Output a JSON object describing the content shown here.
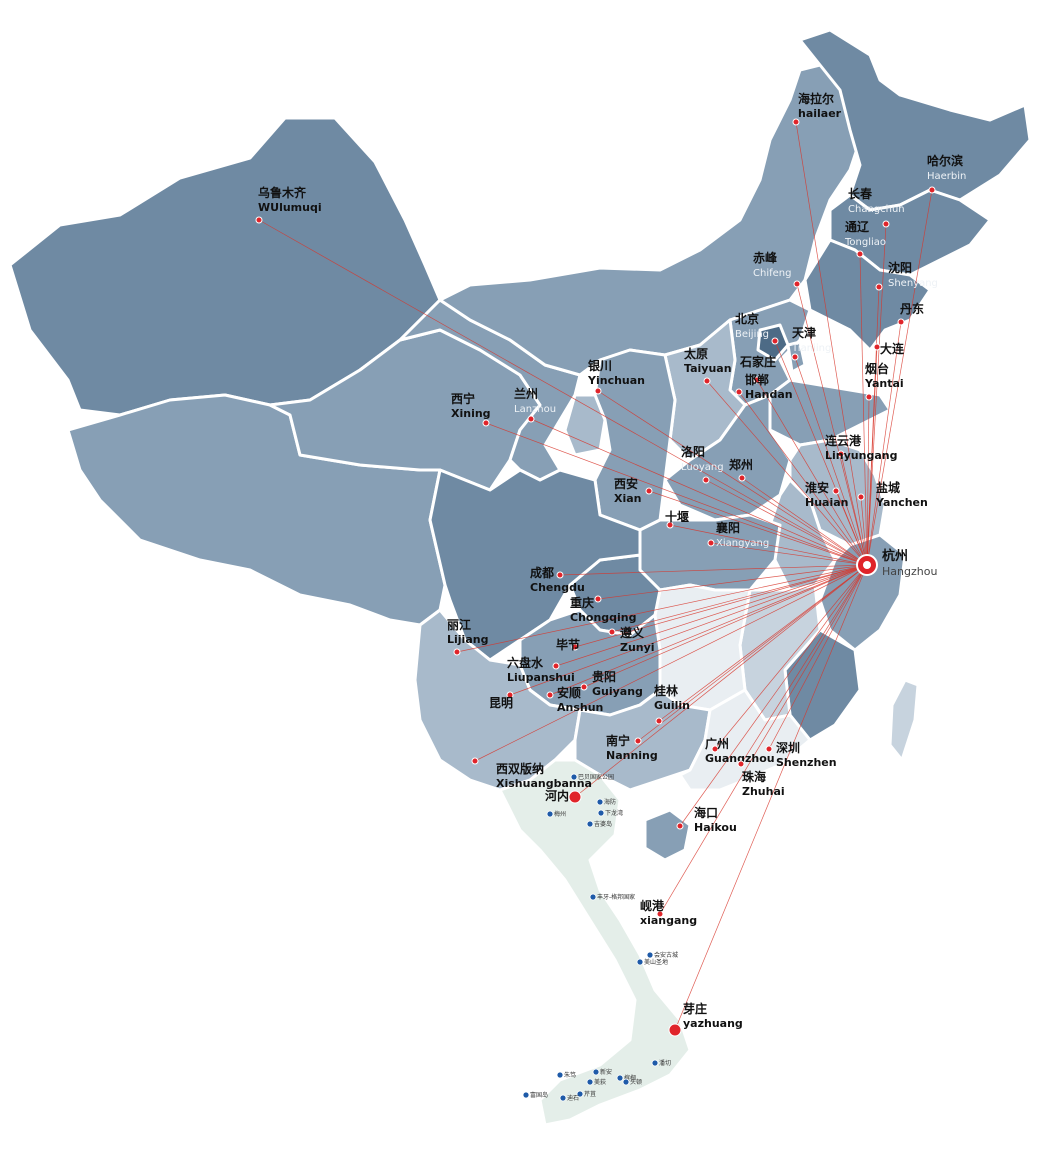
{
  "colors": {
    "province_dark": "#6f8aa3",
    "province_mid": "#879fb5",
    "province_light": "#a8bacb",
    "province_pale": "#c7d3de",
    "province_white": "#e9eef2",
    "vietnam": "#e4eee9",
    "route": "#d8352a",
    "dot": "#e0242a"
  },
  "hub": {
    "zh": "杭州",
    "en": "Hangzhou"
  },
  "cities": [
    {
      "id": "hailaer",
      "zh": "海拉尔",
      "en": "hailaer"
    },
    {
      "id": "haerbin",
      "zh": "哈尔滨",
      "en": "Haerbin"
    },
    {
      "id": "changchun",
      "zh": "长春",
      "en": "Changchun"
    },
    {
      "id": "tongliao",
      "zh": "通辽",
      "en": "Tongliao"
    },
    {
      "id": "chifeng",
      "zh": "赤峰",
      "en": "Chifeng"
    },
    {
      "id": "shenyang",
      "zh": "沈阳",
      "en": "Shenyang"
    },
    {
      "id": "dandong",
      "zh": "丹东",
      "en": ""
    },
    {
      "id": "dalian",
      "zh": "大连",
      "en": ""
    },
    {
      "id": "yantai",
      "zh": "烟台",
      "en": "Yantai"
    },
    {
      "id": "beijing",
      "zh": "北京",
      "en": "Beijing"
    },
    {
      "id": "tianjin",
      "zh": "天津",
      "en": "Tianjing"
    },
    {
      "id": "shijiazhuang",
      "zh": "石家庄",
      "en": ""
    },
    {
      "id": "handan",
      "zh": "邯郸",
      "en": "Handan"
    },
    {
      "id": "taiyuan",
      "zh": "太原",
      "en": "Taiyuan"
    },
    {
      "id": "yinchuan",
      "zh": "银川",
      "en": "Yinchuan"
    },
    {
      "id": "lanzhou",
      "zh": "兰州",
      "en": "Lanzhou"
    },
    {
      "id": "xining",
      "zh": "西宁",
      "en": "Xining"
    },
    {
      "id": "wulumuqi",
      "zh": "乌鲁木齐",
      "en": "WUlumuqi"
    },
    {
      "id": "lianyungang",
      "zh": "连云港",
      "en": "Linyungang"
    },
    {
      "id": "huaian",
      "zh": "淮安",
      "en": "Huaian"
    },
    {
      "id": "yancheng",
      "zh": "盐城",
      "en": "Yanchen"
    },
    {
      "id": "luoyang",
      "zh": "洛阳",
      "en": "Luoyang"
    },
    {
      "id": "zhengzhou",
      "zh": "郑州",
      "en": ""
    },
    {
      "id": "xian",
      "zh": "西安",
      "en": "Xian"
    },
    {
      "id": "shiyan",
      "zh": "十堰",
      "en": ""
    },
    {
      "id": "xiangyang",
      "zh": "襄阳",
      "en": "Xiangyang"
    },
    {
      "id": "chengdu",
      "zh": "成都",
      "en": "Chengdu"
    },
    {
      "id": "chongqing",
      "zh": "重庆",
      "en": "Chongqing"
    },
    {
      "id": "zunyi",
      "zh": "遵义",
      "en": "Zunyi"
    },
    {
      "id": "bijie",
      "zh": "毕节",
      "en": ""
    },
    {
      "id": "liupanshui",
      "zh": "六盘水",
      "en": "Liupanshui"
    },
    {
      "id": "guiyang",
      "zh": "贵阳",
      "en": "Guiyang"
    },
    {
      "id": "anshun",
      "zh": "安顺",
      "en": "Anshun"
    },
    {
      "id": "lijiang",
      "zh": "丽江",
      "en": "Lijiang"
    },
    {
      "id": "kunming",
      "zh": "昆明",
      "en": ""
    },
    {
      "id": "guilin",
      "zh": "桂林",
      "en": "Guilin"
    },
    {
      "id": "nanning",
      "zh": "南宁",
      "en": "Nanning"
    },
    {
      "id": "guangzhou",
      "zh": "广州",
      "en": "Guangzhou"
    },
    {
      "id": "shenzhen",
      "zh": "深圳",
      "en": "Shenzhen"
    },
    {
      "id": "zhuhai",
      "zh": "珠海",
      "en": "Zhuhai"
    },
    {
      "id": "haikou",
      "zh": "海口",
      "en": "Haikou"
    },
    {
      "id": "xishuangbanna",
      "zh": "西双版纳",
      "en": "Xishuangbanna"
    },
    {
      "id": "hanoi",
      "zh": "河内",
      "en": ""
    },
    {
      "id": "xiangang",
      "zh": "岘港",
      "en": "xiangang"
    },
    {
      "id": "yazhuang",
      "zh": "芽庄",
      "en": "yazhuang"
    }
  ],
  "vietnam_spots": [
    {
      "id": "s1",
      "label": "巴贝国家公园"
    },
    {
      "id": "s2",
      "label": "海防"
    },
    {
      "id": "s3",
      "label": "下龙湾"
    },
    {
      "id": "s4",
      "label": "梅州"
    },
    {
      "id": "s5",
      "label": "吉婆岛"
    },
    {
      "id": "s6",
      "label": "丰牙-格邦国家"
    },
    {
      "id": "s7",
      "label": "会安古城"
    },
    {
      "id": "s8",
      "label": "美山圣地"
    },
    {
      "id": "s9",
      "label": "朱笃"
    },
    {
      "id": "s10",
      "label": "新安"
    },
    {
      "id": "s11",
      "label": "美荻"
    },
    {
      "id": "s12",
      "label": "槟椥"
    },
    {
      "id": "s13",
      "label": "头顿"
    },
    {
      "id": "s14",
      "label": "芹苴"
    },
    {
      "id": "s15",
      "label": "迪石"
    },
    {
      "id": "s16",
      "label": "富国岛"
    },
    {
      "id": "s17",
      "label": "潘切"
    }
  ]
}
